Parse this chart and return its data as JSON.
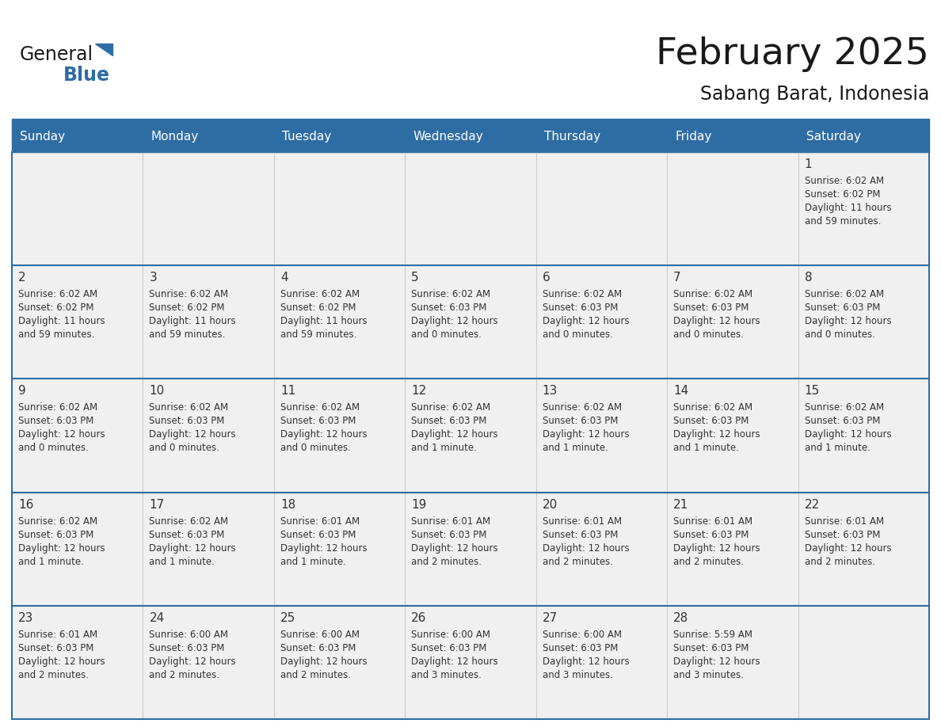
{
  "title": "February 2025",
  "subtitle": "Sabang Barat, Indonesia",
  "header_bg": "#2e6da4",
  "header_text_color": "#ffffff",
  "cell_bg": "#f0f0f0",
  "cell_bg_white": "#ffffff",
  "border_color": "#2e6da4",
  "text_color": "#333333",
  "day_num_color": "#333333",
  "day_headers": [
    "Sunday",
    "Monday",
    "Tuesday",
    "Wednesday",
    "Thursday",
    "Friday",
    "Saturday"
  ],
  "days_data": [
    {
      "day": 1,
      "col": 6,
      "row": 0,
      "sunrise": "6:02 AM",
      "sunset": "6:02 PM",
      "daylight": "11 hours\nand 59 minutes."
    },
    {
      "day": 2,
      "col": 0,
      "row": 1,
      "sunrise": "6:02 AM",
      "sunset": "6:02 PM",
      "daylight": "11 hours\nand 59 minutes."
    },
    {
      "day": 3,
      "col": 1,
      "row": 1,
      "sunrise": "6:02 AM",
      "sunset": "6:02 PM",
      "daylight": "11 hours\nand 59 minutes."
    },
    {
      "day": 4,
      "col": 2,
      "row": 1,
      "sunrise": "6:02 AM",
      "sunset": "6:02 PM",
      "daylight": "11 hours\nand 59 minutes."
    },
    {
      "day": 5,
      "col": 3,
      "row": 1,
      "sunrise": "6:02 AM",
      "sunset": "6:03 PM",
      "daylight": "12 hours\nand 0 minutes."
    },
    {
      "day": 6,
      "col": 4,
      "row": 1,
      "sunrise": "6:02 AM",
      "sunset": "6:03 PM",
      "daylight": "12 hours\nand 0 minutes."
    },
    {
      "day": 7,
      "col": 5,
      "row": 1,
      "sunrise": "6:02 AM",
      "sunset": "6:03 PM",
      "daylight": "12 hours\nand 0 minutes."
    },
    {
      "day": 8,
      "col": 6,
      "row": 1,
      "sunrise": "6:02 AM",
      "sunset": "6:03 PM",
      "daylight": "12 hours\nand 0 minutes."
    },
    {
      "day": 9,
      "col": 0,
      "row": 2,
      "sunrise": "6:02 AM",
      "sunset": "6:03 PM",
      "daylight": "12 hours\nand 0 minutes."
    },
    {
      "day": 10,
      "col": 1,
      "row": 2,
      "sunrise": "6:02 AM",
      "sunset": "6:03 PM",
      "daylight": "12 hours\nand 0 minutes."
    },
    {
      "day": 11,
      "col": 2,
      "row": 2,
      "sunrise": "6:02 AM",
      "sunset": "6:03 PM",
      "daylight": "12 hours\nand 0 minutes."
    },
    {
      "day": 12,
      "col": 3,
      "row": 2,
      "sunrise": "6:02 AM",
      "sunset": "6:03 PM",
      "daylight": "12 hours\nand 1 minute."
    },
    {
      "day": 13,
      "col": 4,
      "row": 2,
      "sunrise": "6:02 AM",
      "sunset": "6:03 PM",
      "daylight": "12 hours\nand 1 minute."
    },
    {
      "day": 14,
      "col": 5,
      "row": 2,
      "sunrise": "6:02 AM",
      "sunset": "6:03 PM",
      "daylight": "12 hours\nand 1 minute."
    },
    {
      "day": 15,
      "col": 6,
      "row": 2,
      "sunrise": "6:02 AM",
      "sunset": "6:03 PM",
      "daylight": "12 hours\nand 1 minute."
    },
    {
      "day": 16,
      "col": 0,
      "row": 3,
      "sunrise": "6:02 AM",
      "sunset": "6:03 PM",
      "daylight": "12 hours\nand 1 minute."
    },
    {
      "day": 17,
      "col": 1,
      "row": 3,
      "sunrise": "6:02 AM",
      "sunset": "6:03 PM",
      "daylight": "12 hours\nand 1 minute."
    },
    {
      "day": 18,
      "col": 2,
      "row": 3,
      "sunrise": "6:01 AM",
      "sunset": "6:03 PM",
      "daylight": "12 hours\nand 1 minute."
    },
    {
      "day": 19,
      "col": 3,
      "row": 3,
      "sunrise": "6:01 AM",
      "sunset": "6:03 PM",
      "daylight": "12 hours\nand 2 minutes."
    },
    {
      "day": 20,
      "col": 4,
      "row": 3,
      "sunrise": "6:01 AM",
      "sunset": "6:03 PM",
      "daylight": "12 hours\nand 2 minutes."
    },
    {
      "day": 21,
      "col": 5,
      "row": 3,
      "sunrise": "6:01 AM",
      "sunset": "6:03 PM",
      "daylight": "12 hours\nand 2 minutes."
    },
    {
      "day": 22,
      "col": 6,
      "row": 3,
      "sunrise": "6:01 AM",
      "sunset": "6:03 PM",
      "daylight": "12 hours\nand 2 minutes."
    },
    {
      "day": 23,
      "col": 0,
      "row": 4,
      "sunrise": "6:01 AM",
      "sunset": "6:03 PM",
      "daylight": "12 hours\nand 2 minutes."
    },
    {
      "day": 24,
      "col": 1,
      "row": 4,
      "sunrise": "6:00 AM",
      "sunset": "6:03 PM",
      "daylight": "12 hours\nand 2 minutes."
    },
    {
      "day": 25,
      "col": 2,
      "row": 4,
      "sunrise": "6:00 AM",
      "sunset": "6:03 PM",
      "daylight": "12 hours\nand 2 minutes."
    },
    {
      "day": 26,
      "col": 3,
      "row": 4,
      "sunrise": "6:00 AM",
      "sunset": "6:03 PM",
      "daylight": "12 hours\nand 3 minutes."
    },
    {
      "day": 27,
      "col": 4,
      "row": 4,
      "sunrise": "6:00 AM",
      "sunset": "6:03 PM",
      "daylight": "12 hours\nand 3 minutes."
    },
    {
      "day": 28,
      "col": 5,
      "row": 4,
      "sunrise": "5:59 AM",
      "sunset": "6:03 PM",
      "daylight": "12 hours\nand 3 minutes."
    }
  ],
  "num_rows": 5,
  "num_cols": 7,
  "logo_text1": "General",
  "logo_text2": "Blue",
  "logo_text1_color": "#1a1a1a",
  "logo_text2_color": "#2e6da4",
  "logo_triangle_color": "#2e6da4"
}
